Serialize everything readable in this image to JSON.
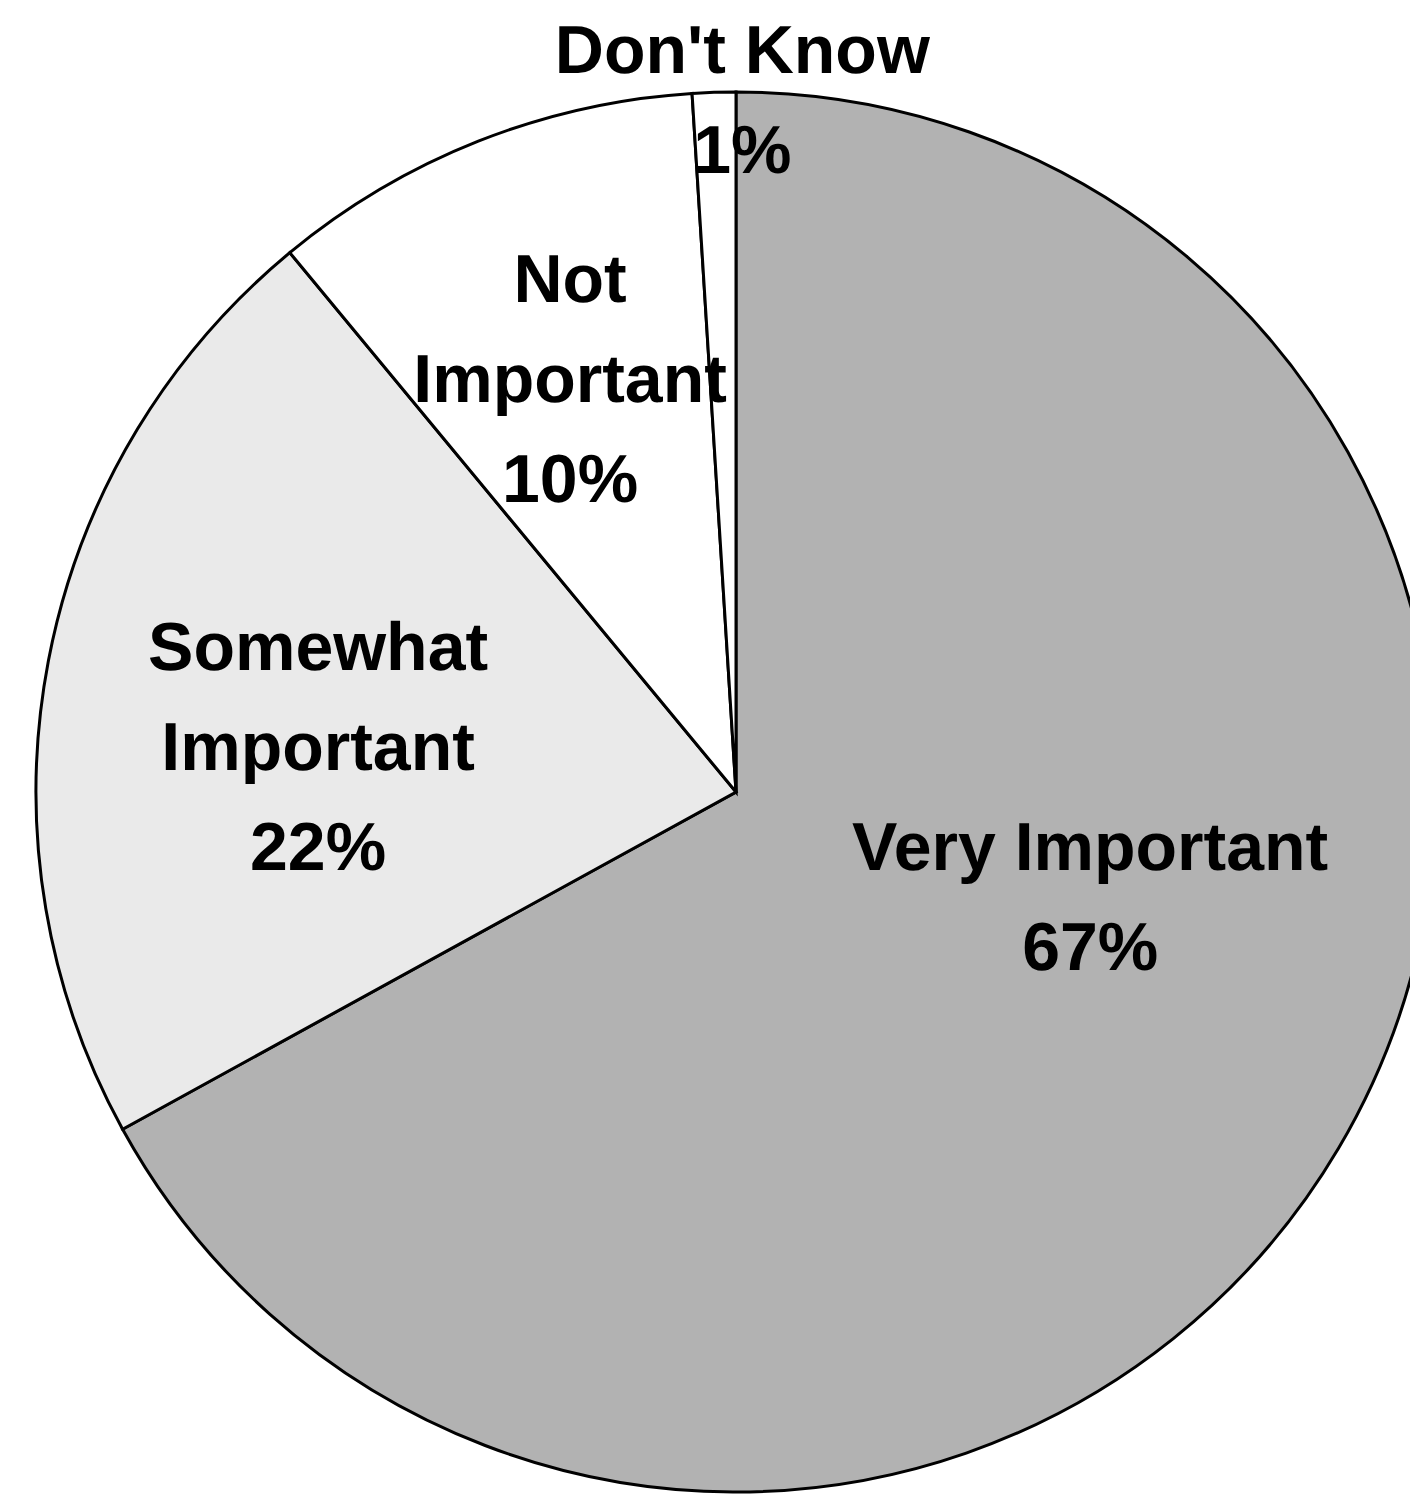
{
  "chart_data": {
    "type": "pie",
    "categories": [
      "Very Important",
      "Somewhat Important",
      "Not Important",
      "Don't Know"
    ],
    "values": [
      67,
      22,
      10,
      1
    ],
    "colors": [
      "#b2b2b2",
      "#eaeaea",
      "#ffffff",
      "#ffffff"
    ],
    "value_labels": [
      "67%",
      "22%",
      "10%",
      "1%"
    ]
  }
}
